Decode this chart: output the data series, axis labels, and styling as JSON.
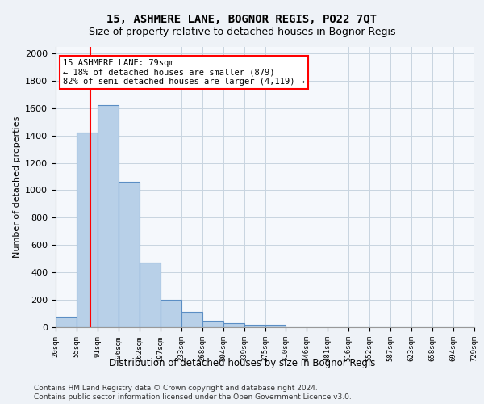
{
  "title1": "15, ASHMERE LANE, BOGNOR REGIS, PO22 7QT",
  "title2": "Size of property relative to detached houses in Bognor Regis",
  "xlabel": "Distribution of detached houses by size in Bognor Regis",
  "ylabel": "Number of detached properties",
  "bin_labels": [
    "20sqm",
    "55sqm",
    "91sqm",
    "126sqm",
    "162sqm",
    "197sqm",
    "233sqm",
    "268sqm",
    "304sqm",
    "339sqm",
    "375sqm",
    "410sqm",
    "446sqm",
    "481sqm",
    "516sqm",
    "552sqm",
    "587sqm",
    "623sqm",
    "658sqm",
    "694sqm",
    "729sqm"
  ],
  "bar_values": [
    75,
    1420,
    1620,
    1060,
    470,
    200,
    110,
    50,
    30,
    20,
    15,
    0,
    0,
    0,
    0,
    0,
    0,
    0,
    0,
    0
  ],
  "bar_color": "#b8d0e8",
  "bar_edge_color": "#5b8ec4",
  "annotation_text": "15 ASHMERE LANE: 79sqm\n← 18% of detached houses are smaller (879)\n82% of semi-detached houses are larger (4,119) →",
  "annotation_box_color": "white",
  "annotation_box_edge": "red",
  "vline_color": "red",
  "ylim": [
    0,
    2050
  ],
  "yticks": [
    0,
    200,
    400,
    600,
    800,
    1000,
    1200,
    1400,
    1600,
    1800,
    2000
  ],
  "footer1": "Contains HM Land Registry data © Crown copyright and database right 2024.",
  "footer2": "Contains public sector information licensed under the Open Government Licence v3.0.",
  "bg_color": "#eef2f7",
  "plot_bg_color": "#f5f8fc",
  "grid_color": "#c8d4e0"
}
